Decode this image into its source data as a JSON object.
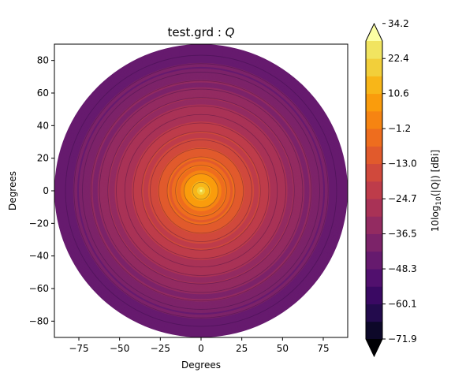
{
  "chart_data": {
    "type": "heatmap",
    "subtype": "filled-contour polar pattern",
    "title": "test.grd : ",
    "title_symbol": "Q",
    "xlabel": "Degrees",
    "ylabel": "Degrees",
    "xlim": [
      -90,
      90
    ],
    "ylim": [
      -90,
      90
    ],
    "x_ticks": [
      -75,
      -50,
      -25,
      0,
      25,
      50,
      75
    ],
    "y_ticks": [
      80,
      60,
      40,
      20,
      0,
      -20,
      -40,
      -60,
      -80
    ],
    "grid": false,
    "colormap": "inferno",
    "pattern": {
      "center": [
        0,
        0
      ],
      "radius_deg": 90,
      "peak_dbi": 40,
      "edge_dbi": -45,
      "ripple_count": 16,
      "ripple_deg": 5.2
    },
    "colorbar": {
      "label": "10log10(|Q|) [dBi]",
      "label_prefix": "10log",
      "label_sub": "10",
      "label_suffix": "(|Q|) [dBi]",
      "levels": [
        -71.9,
        -66.0,
        -60.1,
        -54.2,
        -48.3,
        -42.4,
        -36.5,
        -30.6,
        -24.7,
        -18.8,
        -13.0,
        -7.1,
        -1.2,
        4.7,
        10.6,
        16.5,
        22.4,
        28.3,
        34.2
      ],
      "tick_labels": [
        "34.2",
        "22.4",
        "10.6",
        "−1.2",
        "−13.0",
        "−24.7",
        "−36.5",
        "−48.3",
        "−60.1",
        "−71.9"
      ],
      "extend": "both",
      "colors": [
        "#000004",
        "#0d0829",
        "#230b4d",
        "#3a0963",
        "#51106e",
        "#661a6e",
        "#7c2369",
        "#932b61",
        "#a93256",
        "#be3c4a",
        "#d0493c",
        "#e15a2c",
        "#ee6d1e",
        "#f68412",
        "#fa9c0c",
        "#f8b618",
        "#f2cf3a",
        "#f1e460",
        "#fcffa4"
      ]
    }
  }
}
